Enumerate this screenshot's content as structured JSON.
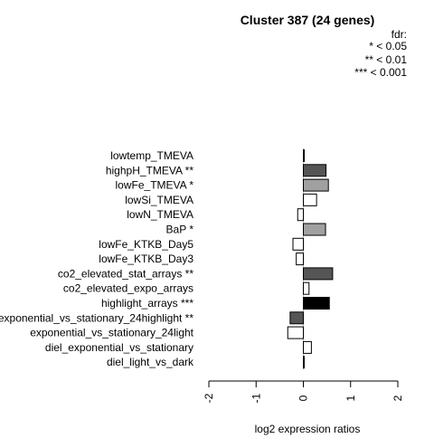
{
  "chart_data": {
    "type": "bar",
    "orientation": "horizontal",
    "title": "Cluster 387 (24 genes)",
    "xlabel": "log2 expression ratios",
    "ylabel": "",
    "xlim": [
      -2,
      2
    ],
    "xticks": [
      "-2",
      "-1",
      "0",
      "1",
      "2"
    ],
    "grid": false,
    "legend": {
      "placement": "top-right",
      "title": "fdr:",
      "items": [
        "* < 0.05",
        "** < 0.01",
        "*** < 0.001"
      ]
    },
    "categories": [
      "lowtemp_TMEVA",
      "highpH_TMEVA **",
      "lowFe_TMEVA *",
      "lowSi_TMEVA",
      "lowN_TMEVA",
      "BaP *",
      "lowFe_KTKB_Day5",
      "lowFe_KTKB_Day3",
      "co2_elevated_stat_arrays **",
      "co2_elevated_expo_arrays",
      "highlight_arrays ***",
      "exponential_vs_stationary_24highlight **",
      "exponential_vs_stationary_24light",
      "diel_exponential_vs_stationary",
      "diel_light_vs_dark"
    ],
    "values": [
      0.01,
      0.48,
      0.53,
      0.28,
      -0.12,
      0.47,
      -0.22,
      -0.15,
      0.62,
      0.12,
      0.55,
      -0.28,
      -0.33,
      0.17,
      0.02
    ],
    "bar_colors": [
      "#ffffff",
      "#555555",
      "#a0a0a0",
      "#ffffff",
      "#ffffff",
      "#a0a0a0",
      "#ffffff",
      "#ffffff",
      "#555555",
      "#ffffff",
      "#000000",
      "#555555",
      "#ffffff",
      "#ffffff",
      "#ffffff"
    ]
  }
}
